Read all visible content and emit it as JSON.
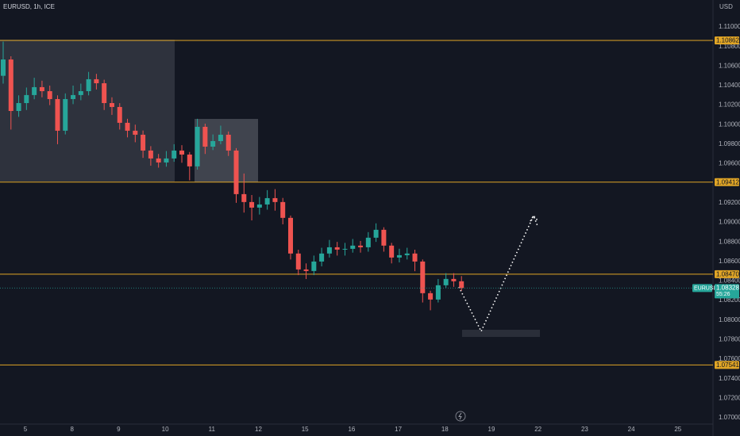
{
  "chart_data": {
    "type": "candlestick",
    "title": "EURUSD, 1h, ICE",
    "currency": "USD",
    "symbol": "EURUSD",
    "last_price": 1.08328,
    "countdown": "55:26",
    "up_color": "#26a69a",
    "down_color": "#ef5350",
    "level_color": "#e0a526",
    "grid": false,
    "ylim": [
      1.06935,
      1.11276
    ],
    "yticks": [
      {
        "value": 1.11,
        "label": "1.11000"
      },
      {
        "value": 1.108,
        "label": "1.10800"
      },
      {
        "value": 1.106,
        "label": "1.10600"
      },
      {
        "value": 1.104,
        "label": "1.10400"
      },
      {
        "value": 1.102,
        "label": "1.10200"
      },
      {
        "value": 1.1,
        "label": "1.10000"
      },
      {
        "value": 1.098,
        "label": "1.09800"
      },
      {
        "value": 1.096,
        "label": "1.09600"
      },
      {
        "value": 1.092,
        "label": "1.09200"
      },
      {
        "value": 1.09,
        "label": "1.09000"
      },
      {
        "value": 1.088,
        "label": "1.08800"
      },
      {
        "value": 1.086,
        "label": "1.08600"
      },
      {
        "value": 1.084,
        "label": "1.08400"
      },
      {
        "value": 1.082,
        "label": "1.08200"
      },
      {
        "value": 1.08,
        "label": "1.08000"
      },
      {
        "value": 1.078,
        "label": "1.07800"
      },
      {
        "value": 1.076,
        "label": "1.07600"
      },
      {
        "value": 1.074,
        "label": "1.07400"
      },
      {
        "value": 1.072,
        "label": "1.07200"
      },
      {
        "value": 1.07,
        "label": "1.07000"
      }
    ],
    "levels": [
      1.10862,
      1.09412,
      {
        "value": 1.0847,
        "label": "1.08470"
      },
      1.07541
    ],
    "categories": [
      "5",
      "8",
      "9",
      "10",
      "11",
      "12",
      "15",
      "16",
      "17",
      "18",
      "19",
      "22",
      "23",
      "24",
      "25"
    ],
    "open": [
      1.105,
      1.10667,
      1.1014,
      1.10221,
      1.10303,
      1.10384,
      1.10343,
      1.10262,
      1.09938,
      1.10262,
      1.10303,
      1.10343,
      1.10465,
      1.10424,
      1.10221,
      1.10181,
      1.10019,
      1.09938,
      1.09897,
      1.09735,
      1.09654,
      1.09613,
      1.09654,
      1.09735,
      1.09694,
      1.09573,
      1.09978,
      1.09775,
      1.09832,
      1.09897,
      1.09735,
      1.09289,
      1.09208,
      1.09151,
      1.09183,
      1.09248,
      1.09208,
      1.09046,
      1.08681,
      1.08518,
      1.08502,
      1.08599,
      1.08681,
      1.08745,
      1.08721,
      1.08729,
      1.08762,
      1.08745,
      1.08843,
      1.08924,
      1.08762,
      1.0864,
      1.08664,
      1.08681,
      1.08599,
      1.08275,
      1.0821,
      1.08356,
      1.08421,
      1.08397
    ],
    "high": [
      1.1085,
      1.107,
      1.103,
      1.1038,
      1.1048,
      1.1045,
      1.104,
      1.103,
      1.1032,
      1.104,
      1.1042,
      1.1054,
      1.1052,
      1.1046,
      1.1028,
      1.1022,
      1.1006,
      1.1,
      1.0994,
      1.0978,
      1.097,
      1.0973,
      1.098,
      1.0979,
      1.0972,
      1.1006,
      1.1001,
      1.099,
      1.0999,
      1.0993,
      1.0976,
      1.095,
      1.0928,
      1.0926,
      1.0933,
      1.0934,
      1.0925,
      1.0907,
      1.0872,
      1.0858,
      1.0866,
      1.0874,
      1.0882,
      1.088,
      1.0879,
      1.0883,
      1.0881,
      1.089,
      1.0899,
      1.0895,
      1.0879,
      1.0873,
      1.0874,
      1.0872,
      1.0862,
      1.083,
      1.0842,
      1.0848,
      1.0848,
      1.0845
    ],
    "low": [
      1.1042,
      1.0995,
      1.1008,
      1.1015,
      1.1026,
      1.1028,
      1.102,
      1.098,
      1.099,
      1.1021,
      1.1025,
      1.103,
      1.1036,
      1.1015,
      1.101,
      1.0995,
      1.0987,
      1.0982,
      1.0966,
      1.0958,
      1.0956,
      1.0957,
      1.0962,
      1.0961,
      1.0943,
      1.0954,
      1.097,
      1.0974,
      1.098,
      1.0968,
      1.092,
      1.091,
      1.0902,
      1.0908,
      1.0913,
      1.0912,
      1.0898,
      1.0862,
      1.0846,
      1.0842,
      1.0846,
      1.0855,
      1.0864,
      1.0866,
      1.0866,
      1.0869,
      1.0869,
      1.087,
      1.088,
      1.087,
      1.0858,
      1.0859,
      1.0862,
      1.085,
      1.0818,
      1.081,
      1.0818,
      1.0833,
      1.0834,
      1.083
    ],
    "close": [
      1.10667,
      1.1014,
      1.10221,
      1.10303,
      1.10384,
      1.10343,
      1.10262,
      1.09938,
      1.10262,
      1.10303,
      1.10343,
      1.10465,
      1.10424,
      1.10221,
      1.10181,
      1.10019,
      1.09938,
      1.09897,
      1.09735,
      1.09654,
      1.09613,
      1.09654,
      1.09735,
      1.09694,
      1.09573,
      1.09978,
      1.09775,
      1.09832,
      1.09897,
      1.09735,
      1.09289,
      1.09208,
      1.09151,
      1.09183,
      1.09248,
      1.09208,
      1.09046,
      1.08681,
      1.08518,
      1.08502,
      1.08599,
      1.08681,
      1.08745,
      1.08721,
      1.08729,
      1.08762,
      1.08745,
      1.08843,
      1.08924,
      1.08762,
      1.0864,
      1.08664,
      1.08681,
      1.08599,
      1.08275,
      1.0821,
      1.08356,
      1.08421,
      1.08397,
      1.08328
    ]
  }
}
